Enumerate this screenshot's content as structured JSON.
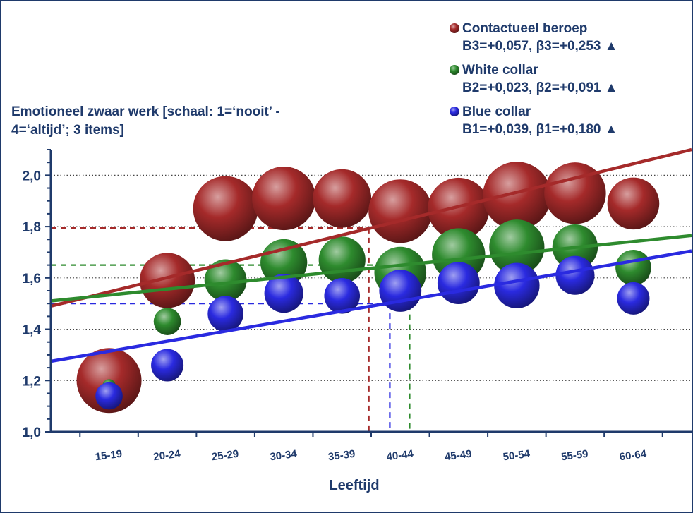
{
  "chart_data": {
    "type": "scatter",
    "title": "Emotioneel zwaar werk [schaal: 1=‘nooit’ - 4=‘altijd’; 3 items]",
    "title_lines": [
      "Emotioneel zwaar werk [schaal: 1=‘nooit’ -",
      "4=‘altijd’; 3 items]"
    ],
    "xlabel": "Leeftijd",
    "ylabel": "",
    "categories": [
      "15-19",
      "20-24",
      "25-29",
      "30-34",
      "35-39",
      "40-44",
      "45-49",
      "50-54",
      "55-59",
      "60-64"
    ],
    "ylim": [
      1.0,
      2.1
    ],
    "yticks": [
      "1,0",
      "1,2",
      "1,4",
      "1,6",
      "1,8",
      "2,0"
    ],
    "ytick_values": [
      1.0,
      1.2,
      1.4,
      1.6,
      1.8,
      2.0
    ],
    "grid": "horizontal dotted",
    "legend_position": "top-right",
    "series": [
      {
        "name": "Contactueel beroep",
        "stats": "B3=+0,057, β3=+0,253",
        "trend_marker": "▲",
        "color": "#a52a2a",
        "values": [
          1.2,
          1.59,
          1.87,
          1.91,
          1.91,
          1.86,
          1.87,
          1.92,
          1.93,
          1.89
        ],
        "sizes": [
          1.0,
          0.85,
          1.0,
          0.98,
          0.9,
          0.98,
          0.95,
          1.05,
          0.95,
          0.8
        ],
        "trend": {
          "start": 1.49,
          "end": 2.1
        },
        "reference": {
          "y": 1.795,
          "x": 39.3
        }
      },
      {
        "name": "White collar",
        "stats": "B2=+0,023, β2=+0,091",
        "trend_marker": "▲",
        "color": "#2e8b2e",
        "values": [
          1.18,
          1.43,
          1.59,
          1.66,
          1.67,
          1.62,
          1.69,
          1.72,
          1.72,
          1.64
        ],
        "sizes": [
          0.2,
          0.42,
          0.65,
          0.72,
          0.72,
          0.8,
          0.82,
          0.85,
          0.7,
          0.55
        ],
        "trend": {
          "start": 1.51,
          "end": 1.765
        },
        "reference": {
          "y": 1.65,
          "x": 42.8
        }
      },
      {
        "name": "Blue collar",
        "stats": "B1=+0,039, β1=+0,180",
        "trend_marker": "▲",
        "color": "#2a2ae0",
        "values": [
          1.14,
          1.26,
          1.46,
          1.54,
          1.53,
          1.55,
          1.58,
          1.57,
          1.61,
          1.52
        ],
        "sizes": [
          0.42,
          0.5,
          0.55,
          0.6,
          0.55,
          0.65,
          0.65,
          0.7,
          0.6,
          0.5
        ],
        "trend": {
          "start": 1.275,
          "end": 1.705
        },
        "reference": {
          "y": 1.5,
          "x": 41.1
        }
      }
    ]
  }
}
